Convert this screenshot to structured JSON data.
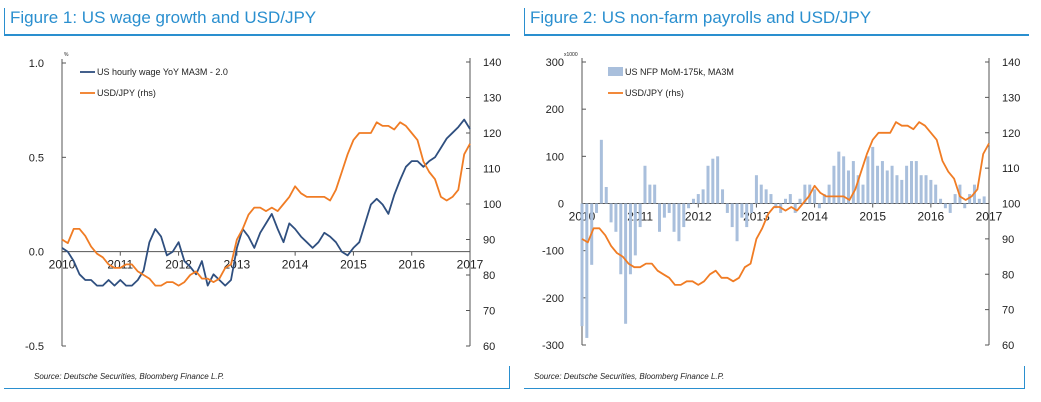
{
  "figures": [
    {
      "title": "Figure 1: US wage growth and USD/JPY",
      "source": "Source: Deutsche Securities, Bloomberg Finance L.P.",
      "left_unit": "%"
    },
    {
      "title": "Figure 2: US non-farm payrolls and USD/JPY",
      "source": "Source: Deutsche Securities, Bloomberg Finance L.P.",
      "left_unit": "x1000"
    }
  ],
  "colors": {
    "title": "#2a8fcf",
    "navy": "#2f4f7f",
    "orange": "#f07c24",
    "bars": "#a9bfdc"
  },
  "chart_data": [
    {
      "type": "line",
      "title": "",
      "x_ticks": [
        "2010",
        "2011",
        "2012",
        "2013",
        "2014",
        "2015",
        "2016",
        "2017"
      ],
      "y_left": {
        "ticks": [
          "1.0",
          "0.5",
          "0.0",
          "-0.5"
        ],
        "range": [
          -0.5,
          1.0
        ]
      },
      "y_right": {
        "ticks": [
          "140",
          "130",
          "120",
          "110",
          "100",
          "90",
          "80",
          "70",
          "60"
        ],
        "range": [
          60,
          140
        ]
      },
      "legend_position": "top-left",
      "series": [
        {
          "name": "US hourly wage YoY MA3M - 2.0",
          "axis": "left",
          "color": "#2f4f7f",
          "x": [
            2010.0,
            2010.1,
            2010.2,
            2010.3,
            2010.4,
            2010.5,
            2010.6,
            2010.7,
            2010.8,
            2010.9,
            2011.0,
            2011.1,
            2011.2,
            2011.3,
            2011.4,
            2011.5,
            2011.6,
            2011.7,
            2011.8,
            2011.9,
            2012.0,
            2012.1,
            2012.2,
            2012.3,
            2012.4,
            2012.5,
            2012.6,
            2012.7,
            2012.8,
            2012.9,
            2013.0,
            2013.1,
            2013.2,
            2013.3,
            2013.4,
            2013.5,
            2013.6,
            2013.7,
            2013.8,
            2013.9,
            2014.0,
            2014.1,
            2014.2,
            2014.3,
            2014.4,
            2014.5,
            2014.6,
            2014.7,
            2014.8,
            2014.9,
            2015.0,
            2015.1,
            2015.2,
            2015.3,
            2015.4,
            2015.5,
            2015.6,
            2015.7,
            2015.8,
            2015.9,
            2016.0,
            2016.1,
            2016.2,
            2016.3,
            2016.4,
            2016.5,
            2016.6,
            2016.7,
            2016.8,
            2016.9,
            2017.0
          ],
          "y": [
            0.02,
            0.0,
            -0.05,
            -0.12,
            -0.15,
            -0.15,
            -0.18,
            -0.18,
            -0.15,
            -0.18,
            -0.15,
            -0.18,
            -0.18,
            -0.15,
            -0.1,
            0.05,
            0.12,
            0.08,
            -0.02,
            0.0,
            0.05,
            -0.05,
            -0.08,
            -0.12,
            -0.05,
            -0.18,
            -0.12,
            -0.15,
            -0.18,
            -0.15,
            0.02,
            0.12,
            0.08,
            0.02,
            0.1,
            0.15,
            0.2,
            0.12,
            0.05,
            0.15,
            0.12,
            0.08,
            0.05,
            0.02,
            0.05,
            0.1,
            0.08,
            0.05,
            0.0,
            -0.02,
            0.02,
            0.05,
            0.15,
            0.25,
            0.28,
            0.25,
            0.2,
            0.3,
            0.38,
            0.45,
            0.48,
            0.48,
            0.45,
            0.48,
            0.5,
            0.55,
            0.6,
            0.63,
            0.66,
            0.7,
            0.65
          ]
        },
        {
          "name": "USD/JPY (rhs)",
          "axis": "right",
          "color": "#f07c24",
          "x": [
            2010.0,
            2010.1,
            2010.2,
            2010.3,
            2010.4,
            2010.5,
            2010.6,
            2010.7,
            2010.8,
            2010.9,
            2011.0,
            2011.1,
            2011.2,
            2011.3,
            2011.4,
            2011.5,
            2011.6,
            2011.7,
            2011.8,
            2011.9,
            2012.0,
            2012.1,
            2012.2,
            2012.3,
            2012.4,
            2012.5,
            2012.6,
            2012.7,
            2012.8,
            2012.9,
            2013.0,
            2013.1,
            2013.2,
            2013.3,
            2013.4,
            2013.5,
            2013.6,
            2013.7,
            2013.8,
            2013.9,
            2014.0,
            2014.1,
            2014.2,
            2014.3,
            2014.4,
            2014.5,
            2014.6,
            2014.7,
            2014.8,
            2014.9,
            2015.0,
            2015.1,
            2015.2,
            2015.3,
            2015.4,
            2015.5,
            2015.6,
            2015.7,
            2015.8,
            2015.9,
            2016.0,
            2016.1,
            2016.2,
            2016.3,
            2016.4,
            2016.5,
            2016.6,
            2016.7,
            2016.8,
            2016.9,
            2017.0
          ],
          "y": [
            90,
            89,
            93,
            93,
            91,
            88,
            86,
            85,
            83,
            82,
            82,
            83,
            83,
            81,
            80,
            79,
            77,
            77,
            78,
            78,
            77,
            78,
            80,
            81,
            79,
            79,
            78,
            79,
            82,
            83,
            90,
            93,
            97,
            99,
            99,
            98,
            99,
            98,
            100,
            102,
            105,
            103,
            102,
            102,
            102,
            102,
            101,
            104,
            109,
            114,
            118,
            120,
            120,
            120,
            123,
            122,
            122,
            121,
            123,
            122,
            120,
            118,
            112,
            109,
            107,
            102,
            101,
            102,
            104,
            114,
            117
          ]
        }
      ]
    },
    {
      "type": "bar",
      "title": "",
      "x_ticks": [
        "2010",
        "2011",
        "2012",
        "2013",
        "2014",
        "2015",
        "2016",
        "2017"
      ],
      "y_left": {
        "ticks": [
          "300",
          "200",
          "100",
          "0",
          "-100",
          "-200",
          "-300"
        ],
        "range": [
          -300,
          300
        ]
      },
      "y_right": {
        "ticks": [
          "140",
          "130",
          "120",
          "110",
          "100",
          "90",
          "80",
          "70",
          "60"
        ],
        "range": [
          60,
          140
        ]
      },
      "legend_position": "top-left",
      "series": [
        {
          "name": "US NFP MoM-175k, MA3M",
          "axis": "left",
          "type": "bar",
          "color": "#a9bfdc",
          "x": [
            2010.0,
            2010.083,
            2010.167,
            2010.25,
            2010.333,
            2010.417,
            2010.5,
            2010.583,
            2010.667,
            2010.75,
            2010.833,
            2010.917,
            2011.0,
            2011.083,
            2011.167,
            2011.25,
            2011.333,
            2011.417,
            2011.5,
            2011.583,
            2011.667,
            2011.75,
            2011.833,
            2011.917,
            2012.0,
            2012.083,
            2012.167,
            2012.25,
            2012.333,
            2012.417,
            2012.5,
            2012.583,
            2012.667,
            2012.75,
            2012.833,
            2012.917,
            2013.0,
            2013.083,
            2013.167,
            2013.25,
            2013.333,
            2013.417,
            2013.5,
            2013.583,
            2013.667,
            2013.75,
            2013.833,
            2013.917,
            2014.0,
            2014.083,
            2014.167,
            2014.25,
            2014.333,
            2014.417,
            2014.5,
            2014.583,
            2014.667,
            2014.75,
            2014.833,
            2014.917,
            2015.0,
            2015.083,
            2015.167,
            2015.25,
            2015.333,
            2015.417,
            2015.5,
            2015.583,
            2015.667,
            2015.75,
            2015.833,
            2015.917,
            2016.0,
            2016.083,
            2016.167,
            2016.25,
            2016.333,
            2016.417,
            2016.5,
            2016.583,
            2016.667,
            2016.75,
            2016.833,
            2016.917
          ],
          "y": [
            -260,
            -285,
            -130,
            -20,
            135,
            35,
            -40,
            -60,
            -150,
            -255,
            -150,
            -110,
            -50,
            80,
            40,
            40,
            -60,
            -30,
            -20,
            -60,
            -80,
            -50,
            -10,
            10,
            20,
            30,
            80,
            95,
            100,
            30,
            -20,
            -50,
            -80,
            -30,
            -50,
            -20,
            60,
            40,
            30,
            20,
            -10,
            -20,
            10,
            20,
            -20,
            10,
            40,
            40,
            30,
            -10,
            20,
            40,
            80,
            110,
            100,
            70,
            90,
            60,
            40,
            100,
            120,
            80,
            90,
            70,
            80,
            60,
            50,
            80,
            90,
            90,
            60,
            60,
            50,
            40,
            10,
            -10,
            -20,
            20,
            40,
            -10,
            20,
            40,
            10,
            15
          ]
        },
        {
          "name": "USD/JPY (rhs)",
          "axis": "right",
          "type": "line",
          "color": "#f07c24",
          "x": [
            2010.0,
            2010.1,
            2010.2,
            2010.3,
            2010.4,
            2010.5,
            2010.6,
            2010.7,
            2010.8,
            2010.9,
            2011.0,
            2011.1,
            2011.2,
            2011.3,
            2011.4,
            2011.5,
            2011.6,
            2011.7,
            2011.8,
            2011.9,
            2012.0,
            2012.1,
            2012.2,
            2012.3,
            2012.4,
            2012.5,
            2012.6,
            2012.7,
            2012.8,
            2012.9,
            2013.0,
            2013.1,
            2013.2,
            2013.3,
            2013.4,
            2013.5,
            2013.6,
            2013.7,
            2013.8,
            2013.9,
            2014.0,
            2014.1,
            2014.2,
            2014.3,
            2014.4,
            2014.5,
            2014.6,
            2014.7,
            2014.8,
            2014.9,
            2015.0,
            2015.1,
            2015.2,
            2015.3,
            2015.4,
            2015.5,
            2015.6,
            2015.7,
            2015.8,
            2015.9,
            2016.0,
            2016.1,
            2016.2,
            2016.3,
            2016.4,
            2016.5,
            2016.6,
            2016.7,
            2016.8,
            2016.9,
            2017.0
          ],
          "y": [
            90,
            89,
            93,
            93,
            91,
            88,
            86,
            85,
            83,
            82,
            82,
            83,
            83,
            81,
            80,
            79,
            77,
            77,
            78,
            78,
            77,
            78,
            80,
            81,
            79,
            79,
            78,
            79,
            82,
            83,
            90,
            93,
            97,
            99,
            99,
            98,
            99,
            98,
            100,
            102,
            105,
            103,
            102,
            102,
            102,
            102,
            101,
            104,
            109,
            114,
            118,
            120,
            120,
            120,
            123,
            122,
            122,
            121,
            123,
            122,
            120,
            118,
            112,
            109,
            107,
            102,
            101,
            102,
            104,
            114,
            117
          ]
        }
      ]
    }
  ]
}
